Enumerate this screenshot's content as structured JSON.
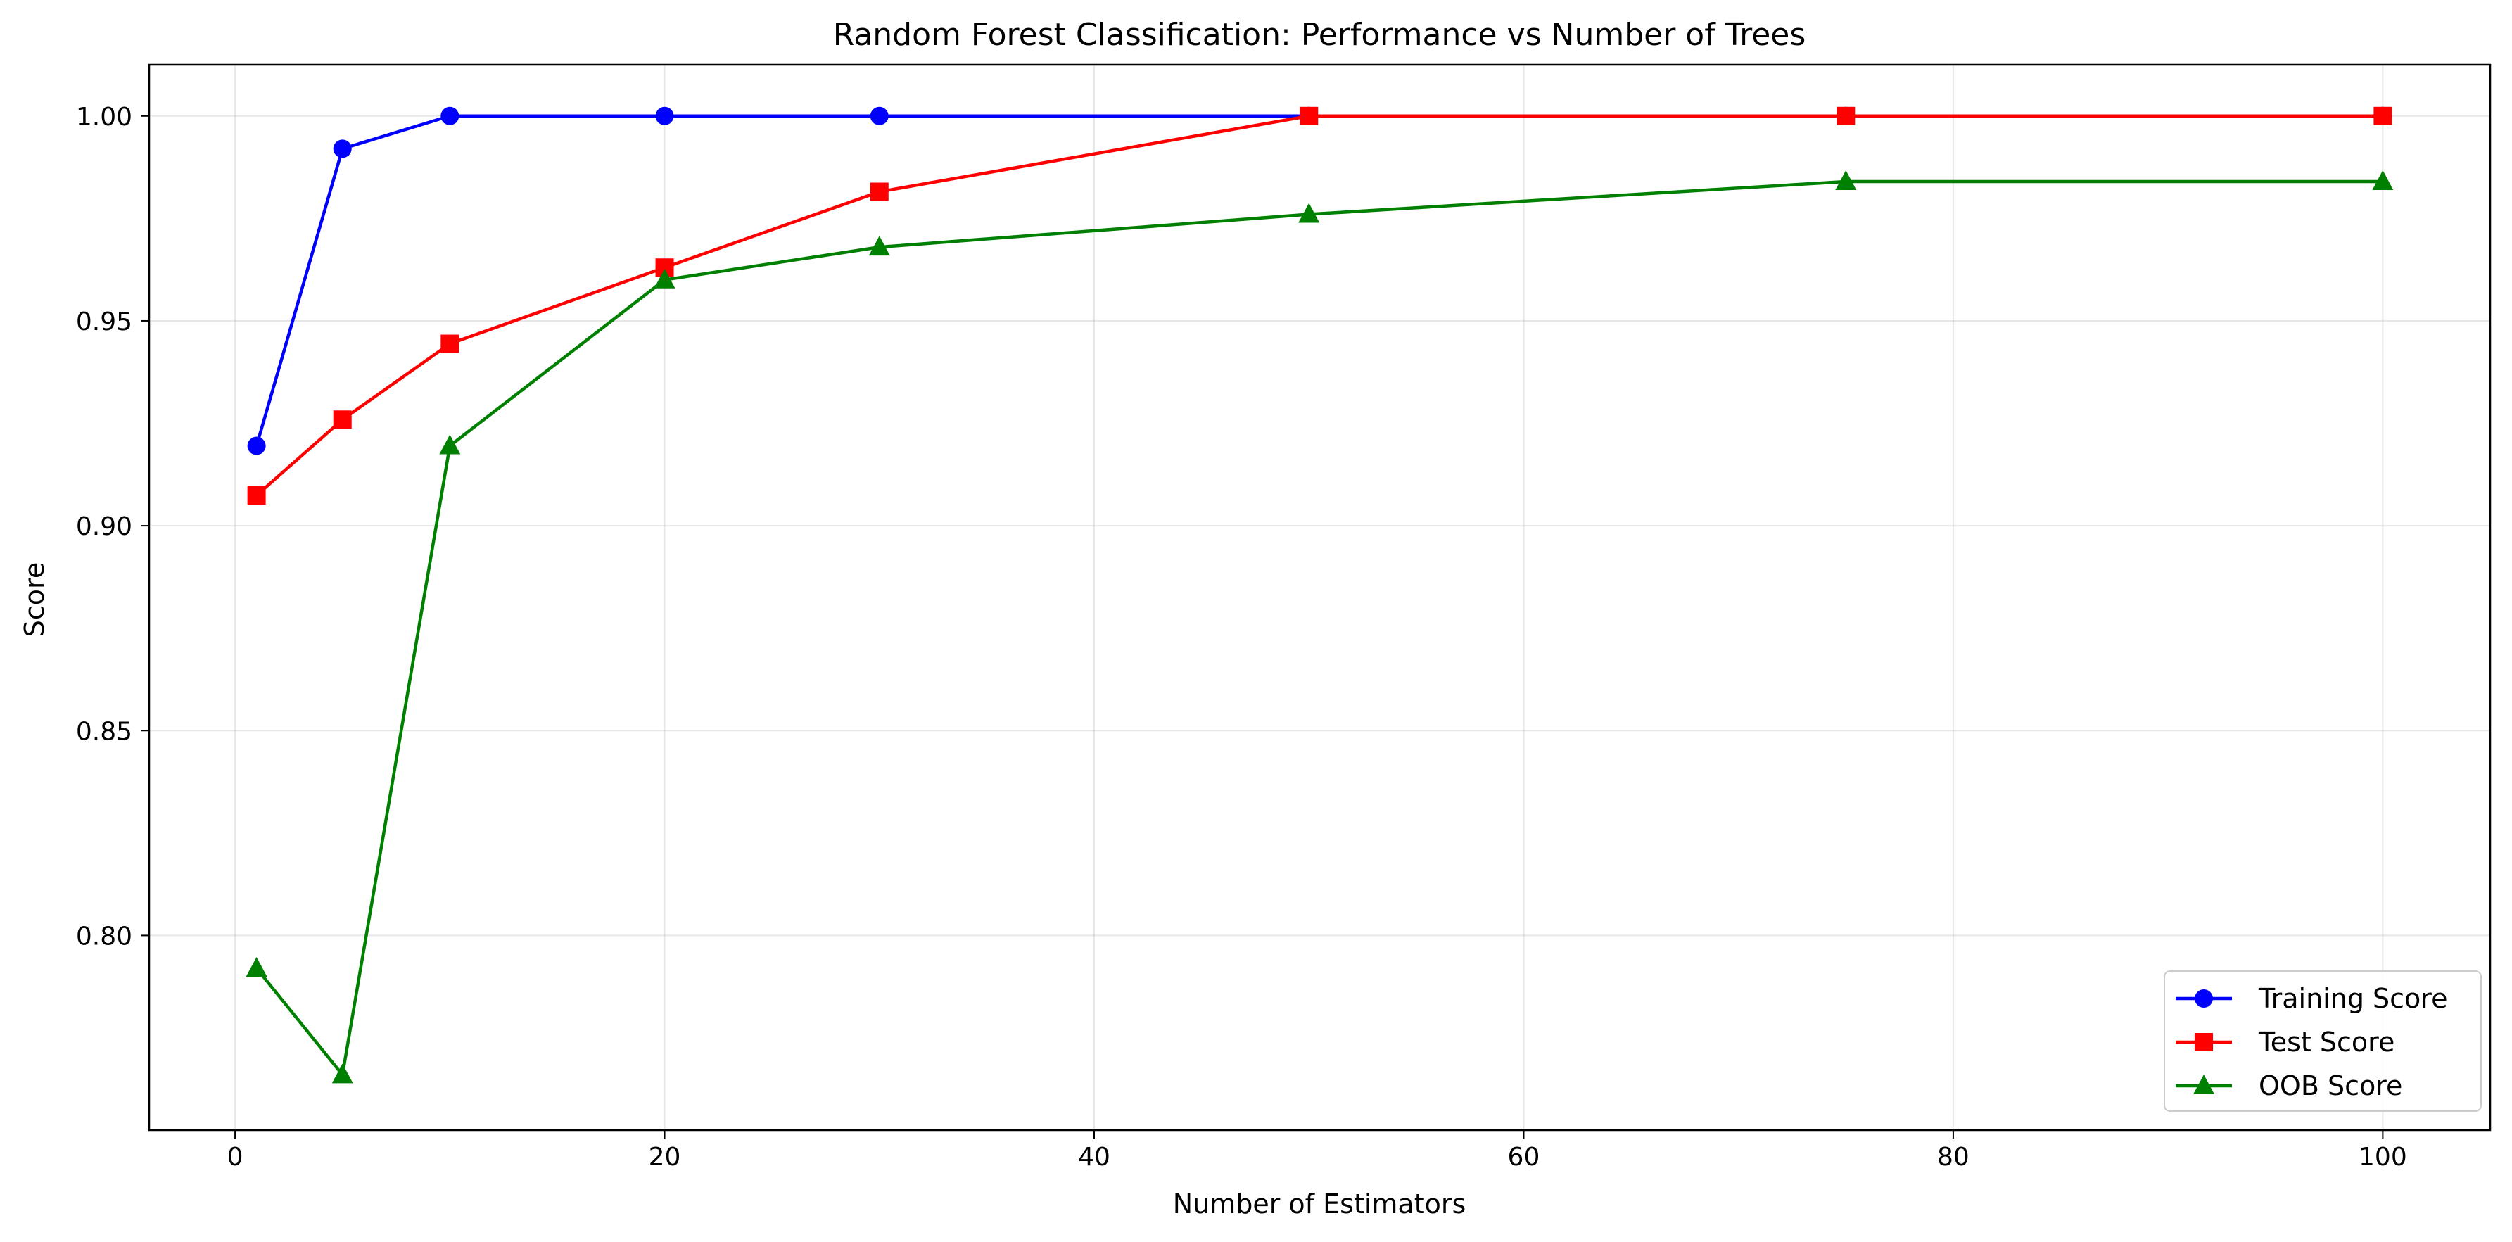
{
  "chart_data": {
    "type": "line",
    "title": "Random Forest Classification: Performance vs Number of Trees",
    "xlabel": "Number of Estimators",
    "ylabel": "Score",
    "xlim": [
      -4.0,
      105.0
    ],
    "ylim": [
      0.7525,
      1.0125
    ],
    "xticks": [
      0,
      20,
      40,
      60,
      80,
      100
    ],
    "xtick_labels": [
      "0",
      "20",
      "40",
      "60",
      "80",
      "100"
    ],
    "yticks": [
      0.8,
      0.85,
      0.9,
      0.95,
      1.0
    ],
    "ytick_labels": [
      "0.80",
      "0.85",
      "0.90",
      "0.95",
      "1.00"
    ],
    "grid": true,
    "legend_position": "bottom-right",
    "x": [
      1,
      5,
      10,
      20,
      30,
      50,
      75,
      100
    ],
    "series": [
      {
        "name": "Training Score",
        "color": "#0000ff",
        "marker": "circle",
        "values": [
          0.9195,
          0.992,
          1.0,
          1.0,
          1.0,
          1.0,
          1.0,
          1.0
        ]
      },
      {
        "name": "Test Score",
        "color": "#ff0000",
        "marker": "square",
        "values": [
          0.9074,
          0.9259,
          0.9444,
          0.963,
          0.9815,
          1.0,
          1.0,
          1.0
        ]
      },
      {
        "name": "OOB Score",
        "color": "#008000",
        "marker": "triangle",
        "values": [
          0.792,
          0.766,
          0.9195,
          0.96,
          0.968,
          0.976,
          0.984,
          0.984
        ]
      }
    ]
  }
}
